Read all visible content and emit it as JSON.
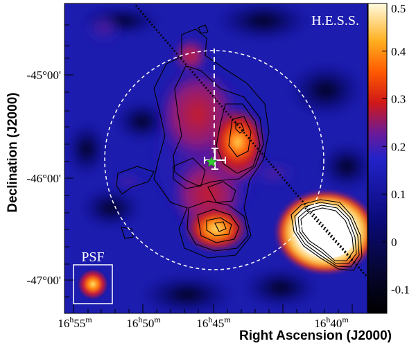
{
  "chart_data": {
    "type": "heatmap",
    "title": "H.E.S.S.",
    "xlabel": "Right Ascension (J2000)",
    "ylabel": "Declination (J2000)",
    "x_ticks": [
      {
        "h": "16",
        "m": "55"
      },
      {
        "h": "16",
        "m": "50"
      },
      {
        "h": "16",
        "m": "45"
      },
      {
        "h": "16",
        "m": "40"
      }
    ],
    "y_ticks": [
      "-45°00'",
      "-46°00'",
      "-47°00'"
    ],
    "colorbar": {
      "min": -0.15,
      "max": 0.5,
      "ticks": [
        0.5,
        0.4,
        0.3,
        0.2,
        0.1,
        0,
        -0.1
      ]
    },
    "inset_label": "PSF",
    "sources": [
      {
        "name": "central-emission",
        "peak_value": 0.45
      },
      {
        "name": "southern-emission",
        "peak_value": 0.42
      },
      {
        "name": "bright-source-southwest",
        "peak_value": 0.5
      }
    ]
  }
}
